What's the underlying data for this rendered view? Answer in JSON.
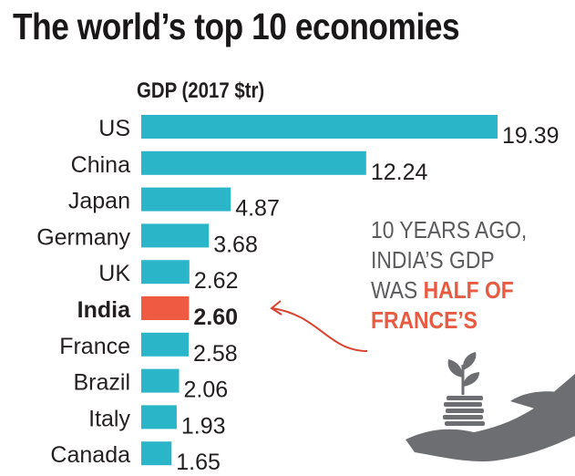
{
  "title": "The world’s top 10 economies",
  "colors": {
    "bar": "#2bb5c9",
    "highlight": "#ef5b42",
    "note_text": "#5b5a5d",
    "arrow": "#d9422e",
    "illustration": "#6d6e71"
  },
  "annotation": {
    "line1": "10 YEARS AGO,",
    "line2": "INDIA’S GDP",
    "line3_plain": "WAS ",
    "line3_highlight": "HALF OF",
    "line4_highlight": "FRANCE’S"
  },
  "illustration_icon": "hand-holding-coins-with-sprout-icon",
  "chart_data": {
    "type": "bar",
    "orientation": "horizontal",
    "title": "The world’s top 10 economies",
    "ylabel": "GDP (2017 $tr)",
    "categories": [
      "US",
      "China",
      "Japan",
      "Germany",
      "UK",
      "India",
      "France",
      "Brazil",
      "Italy",
      "Canada"
    ],
    "values": [
      19.39,
      12.24,
      4.87,
      3.68,
      2.62,
      2.6,
      2.58,
      2.06,
      1.93,
      1.65
    ],
    "value_labels": [
      "19.39",
      "12.24",
      "4.87",
      "3.68",
      "2.62",
      "2.60",
      "2.58",
      "2.06",
      "1.93",
      "1.65"
    ],
    "highlighted_category": "India",
    "xlim": [
      0,
      19.39
    ],
    "grid": false,
    "legend": "none"
  }
}
